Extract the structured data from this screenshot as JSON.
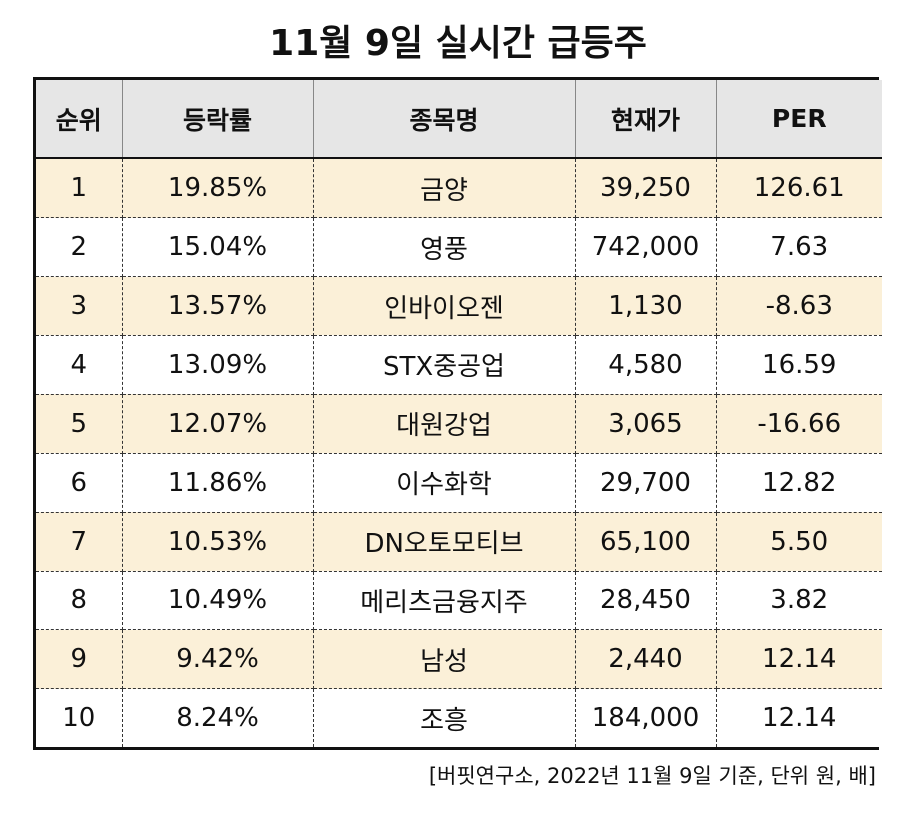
{
  "title": "11월 9일 실시간 급등주",
  "table": {
    "headers": [
      "순위",
      "등락률",
      "종목명",
      "현재가",
      "PER"
    ],
    "rows": [
      [
        "1",
        "19.85%",
        "금양",
        "39,250",
        "126.61"
      ],
      [
        "2",
        "15.04%",
        "영풍",
        "742,000",
        "7.63"
      ],
      [
        "3",
        "13.57%",
        "인바이오젠",
        "1,130",
        "-8.63"
      ],
      [
        "4",
        "13.09%",
        "STX중공업",
        "4,580",
        "16.59"
      ],
      [
        "5",
        "12.07%",
        "대원강업",
        "3,065",
        "-16.66"
      ],
      [
        "6",
        "11.86%",
        "이수화학",
        "29,700",
        "12.82"
      ],
      [
        "7",
        "10.53%",
        "DN오토모티브",
        "65,100",
        "5.50"
      ],
      [
        "8",
        "10.49%",
        "메리츠금융지주",
        "28,450",
        "3.82"
      ],
      [
        "9",
        "9.42%",
        "남성",
        "2,440",
        "12.14"
      ],
      [
        "10",
        "8.24%",
        "조흥",
        "184,000",
        "12.14"
      ]
    ]
  },
  "footnote": "[버핏연구소, 2022년 11월 9일 기준, 단위 원, 배]",
  "colors": {
    "header_bg": "#e6e6e6",
    "highlight_row_bg": "#fbf0d8",
    "border": "#111111"
  }
}
